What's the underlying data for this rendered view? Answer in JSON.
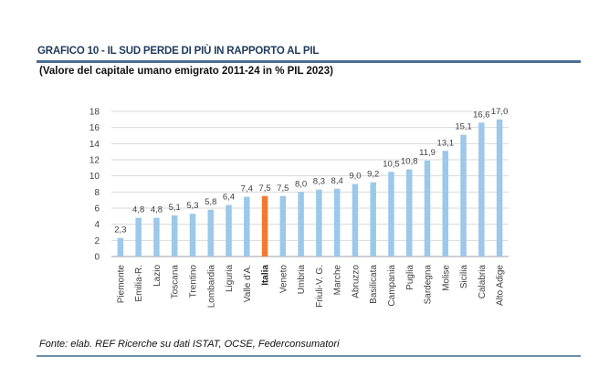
{
  "header": {
    "title": "GRAFICO 10 - IL SUD PERDE DI PIÙ IN RAPPORTO AL PIL",
    "subtitle": "(Valore del capitale umano emigrato 2011-24 in % PIL 2023)"
  },
  "footer": {
    "source": "Fonte: elab. REF Ricerche su dati ISTAT, OCSE, Federconsumatori"
  },
  "colors": {
    "bar": "#9cc8ea",
    "highlight_bar": "#f07a2f",
    "grid": "#d9d9d9",
    "axis": "#bfbfbf"
  },
  "chart_data": {
    "type": "bar",
    "title": "GRAFICO 10 - IL SUD PERDE DI PIÙ IN RAPPORTO AL PIL",
    "subtitle": "(Valore del capitale umano emigrato 2011-24 in % PIL 2023)",
    "xlabel": "",
    "ylabel": "",
    "categories": [
      "Piemonte",
      "Emilia-R.",
      "Lazio",
      "Toscana",
      "Trentino",
      "Lombardia",
      "Liguria",
      "Valle d'A.",
      "Italia",
      "Veneto",
      "Umbria",
      "Friuli-V. G.",
      "Marche",
      "Abruzzo",
      "Basilicata",
      "Campania",
      "Puglia",
      "Sardegna",
      "Molise",
      "Sicilia",
      "Calabria",
      "Alto Adige"
    ],
    "values": [
      2.3,
      4.8,
      4.8,
      5.1,
      5.3,
      5.8,
      6.4,
      7.4,
      7.5,
      7.5,
      8.0,
      8.3,
      8.4,
      9.0,
      9.2,
      10.5,
      10.8,
      11.9,
      13.1,
      15.1,
      16.6,
      17.0
    ],
    "data_labels": [
      "2,3",
      "4,8",
      "4,8",
      "5,1",
      "5,3",
      "5,8",
      "6,4",
      "7,4",
      "7,5",
      "7,5",
      "8,0",
      "8,3",
      "8,4",
      "9,0",
      "9,2",
      "10,5",
      "10,8",
      "11,9",
      "13,1",
      "15,1",
      "16,6",
      "17,0"
    ],
    "highlight": "Italia",
    "ylim": [
      0,
      18
    ],
    "yticks": [
      0,
      2,
      4,
      6,
      8,
      10,
      12,
      14,
      16,
      18
    ],
    "grid": true,
    "legend": "none"
  }
}
